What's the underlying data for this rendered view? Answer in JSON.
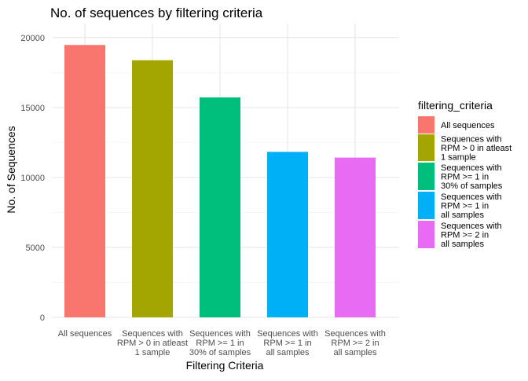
{
  "chart_data": {
    "type": "bar",
    "title": "No. of sequences by filtering criteria",
    "xlabel": "Filtering Criteria",
    "ylabel": "No. of Sequences",
    "ylim": [
      0,
      21000
    ],
    "yticks": [
      0,
      5000,
      10000,
      15000,
      20000
    ],
    "grid": true,
    "legend_title": "filtering_criteria",
    "legend_position": "right",
    "categories": [
      [
        "All sequences"
      ],
      [
        "Sequences with",
        "RPM > 0 in atleast",
        "1 sample"
      ],
      [
        "Sequences with",
        "RPM >= 1 in",
        "30% of samples"
      ],
      [
        "Sequences with",
        "RPM >= 1 in",
        "all samples"
      ],
      [
        "Sequences with",
        "RPM >= 2 in",
        "all samples"
      ]
    ],
    "values": [
      19470,
      18380,
      15720,
      11830,
      11420
    ],
    "colors": [
      "#F8766D",
      "#A3A500",
      "#00BF7D",
      "#00B0F6",
      "#E76BF3"
    ]
  }
}
